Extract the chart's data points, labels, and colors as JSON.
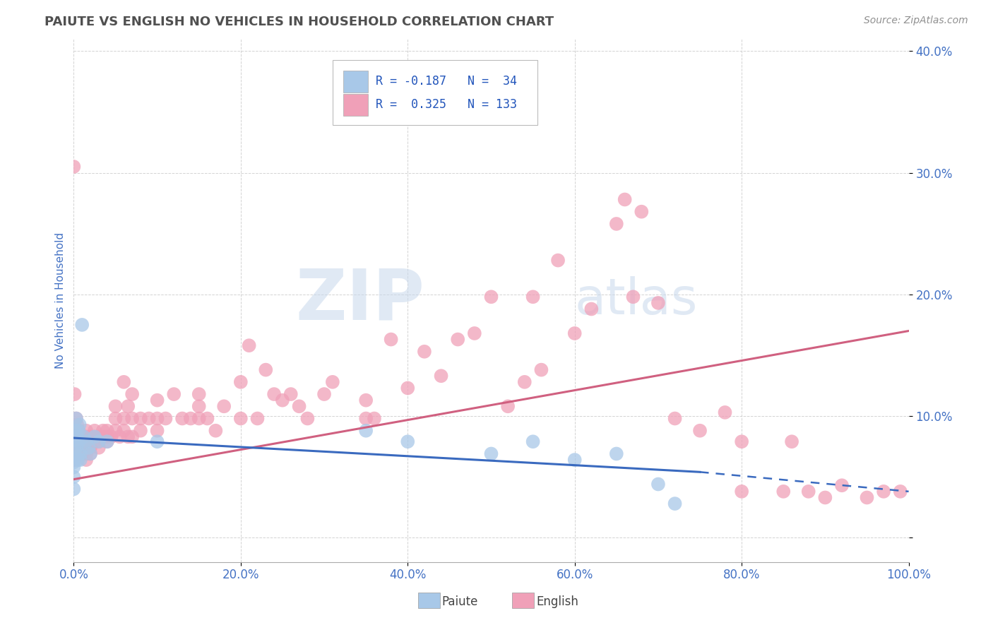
{
  "title": "PAIUTE VS ENGLISH NO VEHICLES IN HOUSEHOLD CORRELATION CHART",
  "source": "Source: ZipAtlas.com",
  "ylabel_label": "No Vehicles in Household",
  "x_ticklabels": [
    "0.0%",
    "20.0%",
    "40.0%",
    "60.0%",
    "80.0%",
    "100.0%"
  ],
  "y_ticklabels": [
    "",
    "10.0%",
    "20.0%",
    "30.0%",
    "40.0%"
  ],
  "xlim": [
    0.0,
    1.0
  ],
  "ylim": [
    -0.02,
    0.41
  ],
  "watermark_zip": "ZIP",
  "watermark_atlas": "atlas",
  "legend": {
    "paiute_R": -0.187,
    "paiute_N": 34,
    "english_R": 0.325,
    "english_N": 133
  },
  "paiute_color": "#a8c8e8",
  "english_color": "#f0a0b8",
  "paiute_line_color": "#3a6abf",
  "english_line_color": "#d06080",
  "title_color": "#505050",
  "source_color": "#909090",
  "axis_label_color": "#4472c4",
  "tick_color": "#4472c4",
  "grid_color": "#c8c8c8",
  "background_color": "#ffffff",
  "paiute_scatter": [
    [
      0.0,
      0.083
    ],
    [
      0.0,
      0.05
    ],
    [
      0.0,
      0.062
    ],
    [
      0.0,
      0.04
    ],
    [
      0.0,
      0.058
    ],
    [
      0.002,
      0.088
    ],
    [
      0.003,
      0.098
    ],
    [
      0.003,
      0.079
    ],
    [
      0.003,
      0.074
    ],
    [
      0.004,
      0.083
    ],
    [
      0.005,
      0.064
    ],
    [
      0.005,
      0.069
    ],
    [
      0.006,
      0.088
    ],
    [
      0.006,
      0.079
    ],
    [
      0.007,
      0.093
    ],
    [
      0.008,
      0.069
    ],
    [
      0.008,
      0.064
    ],
    [
      0.01,
      0.175
    ],
    [
      0.012,
      0.083
    ],
    [
      0.015,
      0.079
    ],
    [
      0.018,
      0.074
    ],
    [
      0.02,
      0.069
    ],
    [
      0.025,
      0.083
    ],
    [
      0.03,
      0.079
    ],
    [
      0.04,
      0.079
    ],
    [
      0.1,
      0.079
    ],
    [
      0.35,
      0.088
    ],
    [
      0.4,
      0.079
    ],
    [
      0.5,
      0.069
    ],
    [
      0.55,
      0.079
    ],
    [
      0.6,
      0.064
    ],
    [
      0.65,
      0.069
    ],
    [
      0.7,
      0.044
    ],
    [
      0.72,
      0.028
    ]
  ],
  "english_scatter": [
    [
      0.0,
      0.305
    ],
    [
      0.0,
      0.079
    ],
    [
      0.0,
      0.074
    ],
    [
      0.0,
      0.069
    ],
    [
      0.0,
      0.064
    ],
    [
      0.001,
      0.118
    ],
    [
      0.001,
      0.079
    ],
    [
      0.001,
      0.074
    ],
    [
      0.001,
      0.064
    ],
    [
      0.002,
      0.088
    ],
    [
      0.002,
      0.083
    ],
    [
      0.002,
      0.079
    ],
    [
      0.002,
      0.074
    ],
    [
      0.003,
      0.098
    ],
    [
      0.003,
      0.088
    ],
    [
      0.003,
      0.083
    ],
    [
      0.003,
      0.079
    ],
    [
      0.004,
      0.093
    ],
    [
      0.004,
      0.083
    ],
    [
      0.004,
      0.079
    ],
    [
      0.005,
      0.088
    ],
    [
      0.005,
      0.083
    ],
    [
      0.005,
      0.074
    ],
    [
      0.005,
      0.069
    ],
    [
      0.006,
      0.088
    ],
    [
      0.006,
      0.083
    ],
    [
      0.006,
      0.079
    ],
    [
      0.007,
      0.079
    ],
    [
      0.007,
      0.074
    ],
    [
      0.008,
      0.079
    ],
    [
      0.008,
      0.074
    ],
    [
      0.008,
      0.069
    ],
    [
      0.009,
      0.083
    ],
    [
      0.01,
      0.079
    ],
    [
      0.01,
      0.074
    ],
    [
      0.01,
      0.069
    ],
    [
      0.012,
      0.079
    ],
    [
      0.012,
      0.074
    ],
    [
      0.015,
      0.088
    ],
    [
      0.015,
      0.083
    ],
    [
      0.015,
      0.079
    ],
    [
      0.015,
      0.074
    ],
    [
      0.015,
      0.069
    ],
    [
      0.015,
      0.064
    ],
    [
      0.018,
      0.079
    ],
    [
      0.02,
      0.083
    ],
    [
      0.02,
      0.079
    ],
    [
      0.02,
      0.074
    ],
    [
      0.02,
      0.069
    ],
    [
      0.025,
      0.088
    ],
    [
      0.025,
      0.083
    ],
    [
      0.025,
      0.079
    ],
    [
      0.03,
      0.083
    ],
    [
      0.03,
      0.079
    ],
    [
      0.03,
      0.074
    ],
    [
      0.035,
      0.088
    ],
    [
      0.035,
      0.083
    ],
    [
      0.04,
      0.088
    ],
    [
      0.04,
      0.083
    ],
    [
      0.04,
      0.079
    ],
    [
      0.045,
      0.083
    ],
    [
      0.05,
      0.108
    ],
    [
      0.05,
      0.098
    ],
    [
      0.05,
      0.088
    ],
    [
      0.055,
      0.083
    ],
    [
      0.06,
      0.128
    ],
    [
      0.06,
      0.098
    ],
    [
      0.06,
      0.088
    ],
    [
      0.065,
      0.108
    ],
    [
      0.065,
      0.083
    ],
    [
      0.07,
      0.118
    ],
    [
      0.07,
      0.098
    ],
    [
      0.07,
      0.083
    ],
    [
      0.08,
      0.098
    ],
    [
      0.08,
      0.088
    ],
    [
      0.09,
      0.098
    ],
    [
      0.1,
      0.113
    ],
    [
      0.1,
      0.098
    ],
    [
      0.1,
      0.088
    ],
    [
      0.11,
      0.098
    ],
    [
      0.12,
      0.118
    ],
    [
      0.13,
      0.098
    ],
    [
      0.14,
      0.098
    ],
    [
      0.15,
      0.118
    ],
    [
      0.15,
      0.108
    ],
    [
      0.15,
      0.098
    ],
    [
      0.16,
      0.098
    ],
    [
      0.17,
      0.088
    ],
    [
      0.18,
      0.108
    ],
    [
      0.2,
      0.128
    ],
    [
      0.2,
      0.098
    ],
    [
      0.21,
      0.158
    ],
    [
      0.22,
      0.098
    ],
    [
      0.23,
      0.138
    ],
    [
      0.24,
      0.118
    ],
    [
      0.25,
      0.113
    ],
    [
      0.26,
      0.118
    ],
    [
      0.27,
      0.108
    ],
    [
      0.28,
      0.098
    ],
    [
      0.3,
      0.118
    ],
    [
      0.31,
      0.128
    ],
    [
      0.35,
      0.113
    ],
    [
      0.35,
      0.098
    ],
    [
      0.36,
      0.098
    ],
    [
      0.38,
      0.163
    ],
    [
      0.4,
      0.123
    ],
    [
      0.42,
      0.153
    ],
    [
      0.44,
      0.133
    ],
    [
      0.46,
      0.163
    ],
    [
      0.48,
      0.168
    ],
    [
      0.5,
      0.198
    ],
    [
      0.52,
      0.108
    ],
    [
      0.54,
      0.128
    ],
    [
      0.55,
      0.198
    ],
    [
      0.56,
      0.138
    ],
    [
      0.58,
      0.228
    ],
    [
      0.6,
      0.168
    ],
    [
      0.62,
      0.188
    ],
    [
      0.65,
      0.258
    ],
    [
      0.66,
      0.278
    ],
    [
      0.67,
      0.198
    ],
    [
      0.68,
      0.268
    ],
    [
      0.7,
      0.193
    ],
    [
      0.72,
      0.098
    ],
    [
      0.75,
      0.088
    ],
    [
      0.78,
      0.103
    ],
    [
      0.8,
      0.079
    ],
    [
      0.8,
      0.038
    ],
    [
      0.85,
      0.038
    ],
    [
      0.86,
      0.079
    ],
    [
      0.88,
      0.038
    ],
    [
      0.9,
      0.033
    ],
    [
      0.92,
      0.043
    ],
    [
      0.95,
      0.033
    ],
    [
      0.97,
      0.038
    ],
    [
      0.99,
      0.038
    ]
  ],
  "paiute_line": [
    0.0,
    0.082,
    0.75,
    0.054
  ],
  "paiute_dash": [
    0.75,
    0.054,
    1.0,
    0.038
  ],
  "english_line": [
    0.0,
    0.048,
    1.0,
    0.17
  ]
}
